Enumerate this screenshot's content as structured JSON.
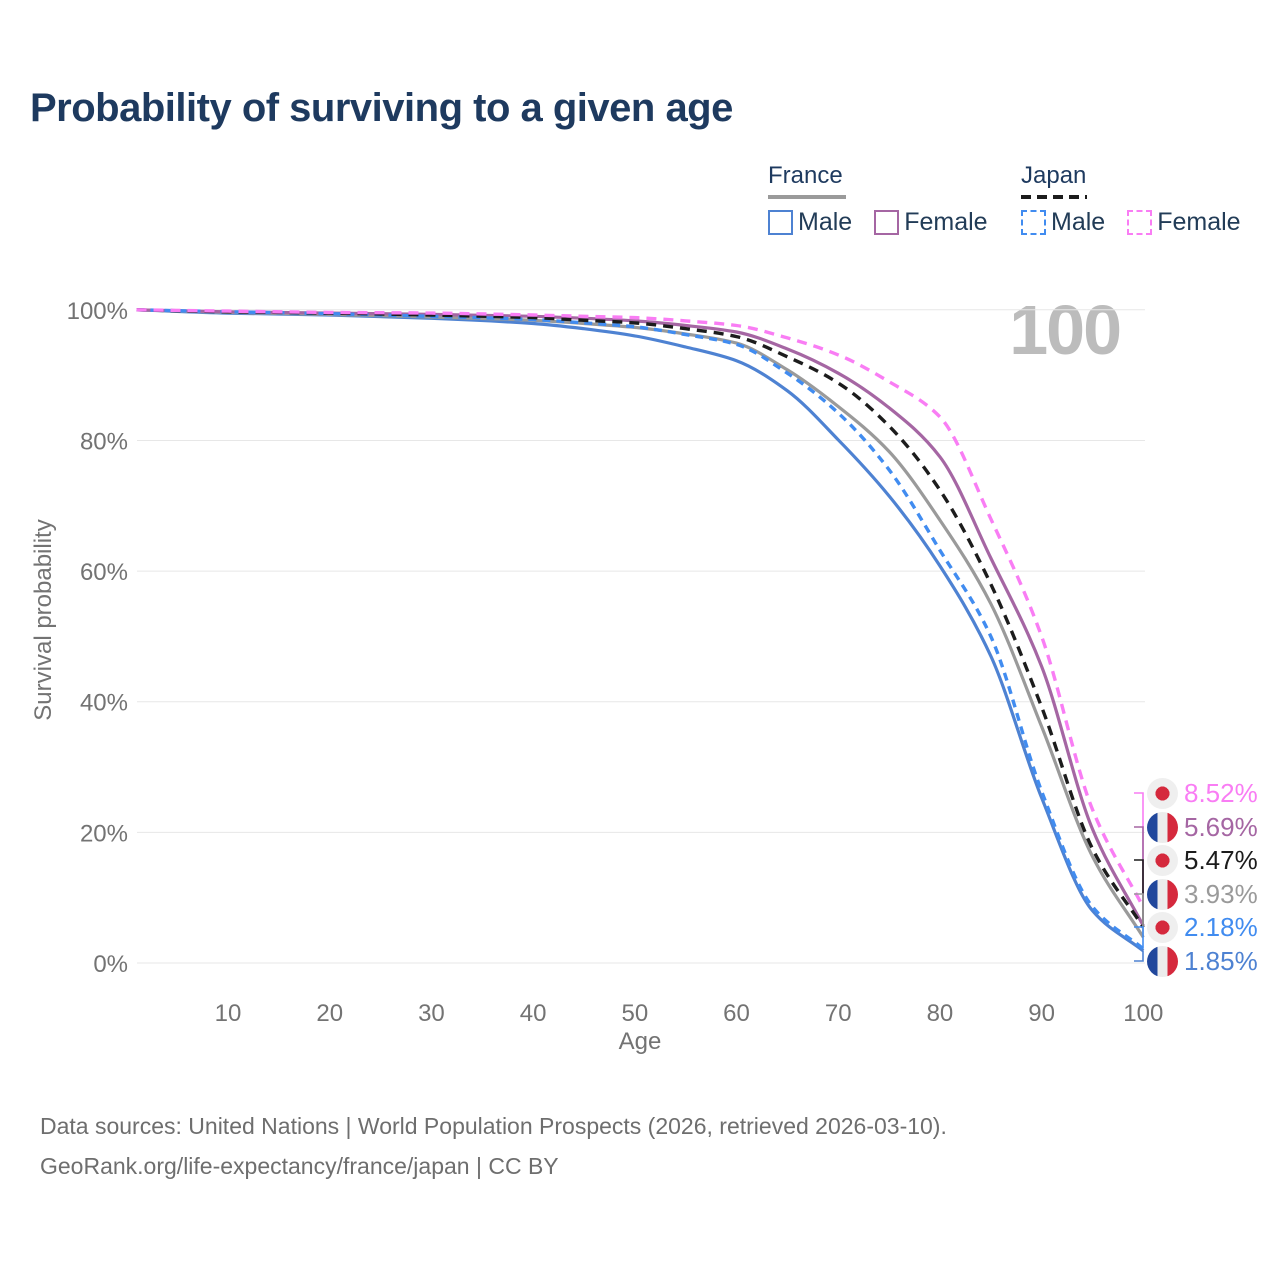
{
  "title": "Probability of surviving to a given age",
  "age_indicator": "100",
  "legend": {
    "groups": [
      {
        "country": "France",
        "line_color": "#9a9a9a",
        "line_dash": false,
        "items": [
          {
            "label": "Male",
            "color": "#4e82d2",
            "dash": false
          },
          {
            "label": "Female",
            "color": "#a566a3",
            "dash": false
          }
        ]
      },
      {
        "country": "Japan",
        "line_color": "#1c1c1c",
        "line_dash": true,
        "items": [
          {
            "label": "Male",
            "color": "#418cf0",
            "dash": true
          },
          {
            "label": "Female",
            "color": "#f97df4",
            "dash": true
          }
        ]
      }
    ]
  },
  "chart_data": {
    "type": "line",
    "title": "Probability of surviving to a given age",
    "xlabel": "Age",
    "ylabel": "Survival probability",
    "xlim": [
      1,
      100
    ],
    "ylim": [
      0,
      100
    ],
    "grid": "horizontal",
    "legend_position": "top-right",
    "x_ticks": [
      {
        "v": 10,
        "label": "10"
      },
      {
        "v": 20,
        "label": "20"
      },
      {
        "v": 30,
        "label": "30"
      },
      {
        "v": 40,
        "label": "40"
      },
      {
        "v": 50,
        "label": "50"
      },
      {
        "v": 60,
        "label": "60"
      },
      {
        "v": 70,
        "label": "70"
      },
      {
        "v": 80,
        "label": "80"
      },
      {
        "v": 90,
        "label": "90"
      },
      {
        "v": 100,
        "label": "100"
      }
    ],
    "y_ticks": [
      {
        "v": 0,
        "label": "0%"
      },
      {
        "v": 20,
        "label": "20%"
      },
      {
        "v": 40,
        "label": "40%"
      },
      {
        "v": 60,
        "label": "60%"
      },
      {
        "v": 80,
        "label": "80%"
      },
      {
        "v": 100,
        "label": "100%"
      }
    ],
    "x": [
      1,
      10,
      20,
      30,
      40,
      45,
      50,
      55,
      60,
      65,
      70,
      75,
      80,
      85,
      90,
      95,
      100
    ],
    "series": [
      {
        "id": "france-male",
        "name": "France Male",
        "color": "#4e82d2",
        "dash": false,
        "values": [
          100,
          99.5,
          99.2,
          98.7,
          97.9,
          97.1,
          96.0,
          94.3,
          92.2,
          87.6,
          80.1,
          71.5,
          60.8,
          47.0,
          25.3,
          8.0,
          1.85
        ],
        "end_value": 1.85,
        "end_label": "1.85%"
      },
      {
        "id": "france-combined",
        "name": "France",
        "color": "#9a9a9a",
        "dash": false,
        "values": [
          100,
          99.6,
          99.3,
          98.9,
          98.4,
          97.9,
          97.3,
          96.3,
          94.9,
          90.8,
          85.2,
          78.3,
          67.8,
          55.0,
          36.2,
          16.3,
          3.93
        ],
        "end_value": 3.93,
        "end_label": "3.93%"
      },
      {
        "id": "france-female",
        "name": "France Female",
        "color": "#a566a3",
        "dash": false,
        "values": [
          100,
          99.7,
          99.5,
          99.3,
          99.0,
          98.7,
          98.3,
          97.6,
          96.6,
          94.0,
          90.3,
          85.0,
          77.5,
          62.0,
          45.4,
          20.5,
          5.69
        ],
        "end_value": 5.69,
        "end_label": "5.69%"
      },
      {
        "id": "japan-male",
        "name": "Japan Male",
        "color": "#418cf0",
        "dash": true,
        "values": [
          100,
          99.7,
          99.4,
          99.0,
          98.5,
          98.0,
          97.4,
          96.2,
          94.7,
          90.3,
          84.2,
          75.5,
          63.2,
          50.0,
          26.3,
          8.6,
          2.18
        ],
        "end_value": 2.18,
        "end_label": "2.18%"
      },
      {
        "id": "japan-combined",
        "name": "Japan",
        "color": "#1c1c1c",
        "dash": true,
        "values": [
          100,
          99.7,
          99.5,
          99.2,
          98.8,
          98.4,
          98.0,
          97.1,
          95.9,
          92.8,
          88.8,
          82.2,
          72.4,
          58.0,
          39.2,
          17.5,
          5.47
        ],
        "end_value": 5.47,
        "end_label": "5.47%"
      },
      {
        "id": "japan-female",
        "name": "Japan Female",
        "color": "#f97df4",
        "dash": true,
        "values": [
          100,
          99.8,
          99.6,
          99.5,
          99.2,
          99.0,
          98.8,
          98.3,
          97.6,
          95.7,
          93.1,
          89.0,
          83.6,
          68.0,
          50.0,
          23.5,
          8.52
        ],
        "end_value": 8.52,
        "end_label": "8.52%"
      }
    ]
  },
  "end_labels": [
    {
      "label": "8.52%",
      "series_id": "japan-female",
      "flag": "japan",
      "color": "#f97df4"
    },
    {
      "label": "5.69%",
      "series_id": "france-female",
      "flag": "france",
      "color": "#a566a3"
    },
    {
      "label": "5.47%",
      "series_id": "japan-combined",
      "flag": "japan",
      "color": "#1c1c1c"
    },
    {
      "label": "3.93%",
      "series_id": "france-combined",
      "flag": "france",
      "color": "#9a9a9a"
    },
    {
      "label": "2.18%",
      "series_id": "japan-male",
      "flag": "japan",
      "color": "#418cf0"
    },
    {
      "label": "1.85%",
      "series_id": "france-male",
      "flag": "france",
      "color": "#4e82d2"
    }
  ],
  "footer": {
    "line1": "Data sources: United Nations | World Population Prospects (2026, retrieved 2026-03-10).",
    "line2": "GeoRank.org/life-expectancy/france/japan | CC BY"
  }
}
